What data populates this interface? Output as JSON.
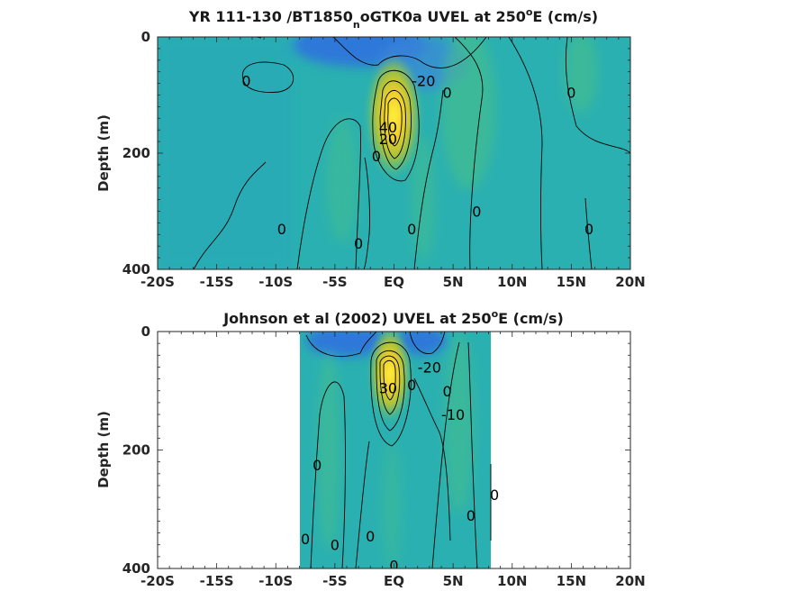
{
  "chart_data": [
    {
      "type": "heatmap",
      "title": "YR 111-130 /BT1850",
      "title_sub": "n",
      "title_rest": "oGTK0a UVEL at 250",
      "title_sup": "o",
      "title_end": "E (cm/s)",
      "ylabel": "Depth (m)",
      "xlabel": "",
      "xlim": [
        -20,
        20
      ],
      "ylim": [
        400,
        0
      ],
      "x_tick_values": [
        -20,
        -15,
        -10,
        -5,
        0,
        5,
        10,
        15,
        20
      ],
      "x_ticks": [
        "-20S",
        "-15S",
        "-10S",
        "-5S",
        "EQ",
        "5N",
        "10N",
        "15N",
        "20N"
      ],
      "y_tick_values": [
        0,
        200,
        400
      ],
      "y_ticks": [
        "0",
        "200",
        "400"
      ],
      "data_extent_x": [
        -20,
        20
      ],
      "jet_core": {
        "lat": 0,
        "depth": 120,
        "max_speed": 100
      },
      "contour_labels": [
        {
          "text": "0",
          "lat": -12.5,
          "depth": 75
        },
        {
          "text": "-20",
          "lat": 2.5,
          "depth": 75
        },
        {
          "text": "0",
          "lat": 4.5,
          "depth": 95
        },
        {
          "text": "0",
          "lat": 15,
          "depth": 95
        },
        {
          "text": "40",
          "lat": -0.5,
          "depth": 155
        },
        {
          "text": "20",
          "lat": -0.5,
          "depth": 175
        },
        {
          "text": "0",
          "lat": -1.5,
          "depth": 205
        },
        {
          "text": "0",
          "lat": -9.5,
          "depth": 330
        },
        {
          "text": "0",
          "lat": -3,
          "depth": 355
        },
        {
          "text": "0",
          "lat": 1.5,
          "depth": 330
        },
        {
          "text": "0",
          "lat": 7,
          "depth": 300
        },
        {
          "text": "0",
          "lat": 16.5,
          "depth": 330
        }
      ]
    },
    {
      "type": "heatmap",
      "title": "Johnson et al (2002) UVEL at 250",
      "title_sup": "o",
      "title_end": "E (cm/s)",
      "ylabel": "Depth (m)",
      "xlabel": "",
      "xlim": [
        -20,
        20
      ],
      "ylim": [
        400,
        0
      ],
      "x_tick_values": [
        -20,
        -15,
        -10,
        -5,
        0,
        5,
        10,
        15,
        20
      ],
      "x_ticks": [
        "-20S",
        "-15S",
        "-10S",
        "-5S",
        "EQ",
        "5N",
        "10N",
        "15N",
        "20N"
      ],
      "y_tick_values": [
        0,
        200,
        400
      ],
      "y_ticks": [
        "0",
        "200",
        "400"
      ],
      "data_extent_x": [
        -8,
        8.5
      ],
      "jet_core": {
        "lat": 0,
        "depth": 70,
        "max_speed": 100
      },
      "contour_labels": [
        {
          "text": "-20",
          "lat": 3,
          "depth": 60
        },
        {
          "text": "30",
          "lat": -0.5,
          "depth": 95
        },
        {
          "text": "0",
          "lat": 1.5,
          "depth": 90
        },
        {
          "text": "0",
          "lat": 4.5,
          "depth": 100
        },
        {
          "text": "-10",
          "lat": 5,
          "depth": 140
        },
        {
          "text": "0",
          "lat": -6.5,
          "depth": 225
        },
        {
          "text": "0",
          "lat": 8.5,
          "depth": 275
        },
        {
          "text": "0",
          "lat": 6.5,
          "depth": 310
        },
        {
          "text": "0",
          "lat": -7.5,
          "depth": 350
        },
        {
          "text": "0",
          "lat": -5,
          "depth": 360
        },
        {
          "text": "0",
          "lat": -2,
          "depth": 345
        },
        {
          "text": "0",
          "lat": 0,
          "depth": 395
        }
      ]
    }
  ],
  "colors": {
    "background_field": "#2ab0b0",
    "westward": "#2f6ee0",
    "jet_core": "#ffe033",
    "jet_mid": "#b6c63c",
    "contour": "#000000"
  }
}
